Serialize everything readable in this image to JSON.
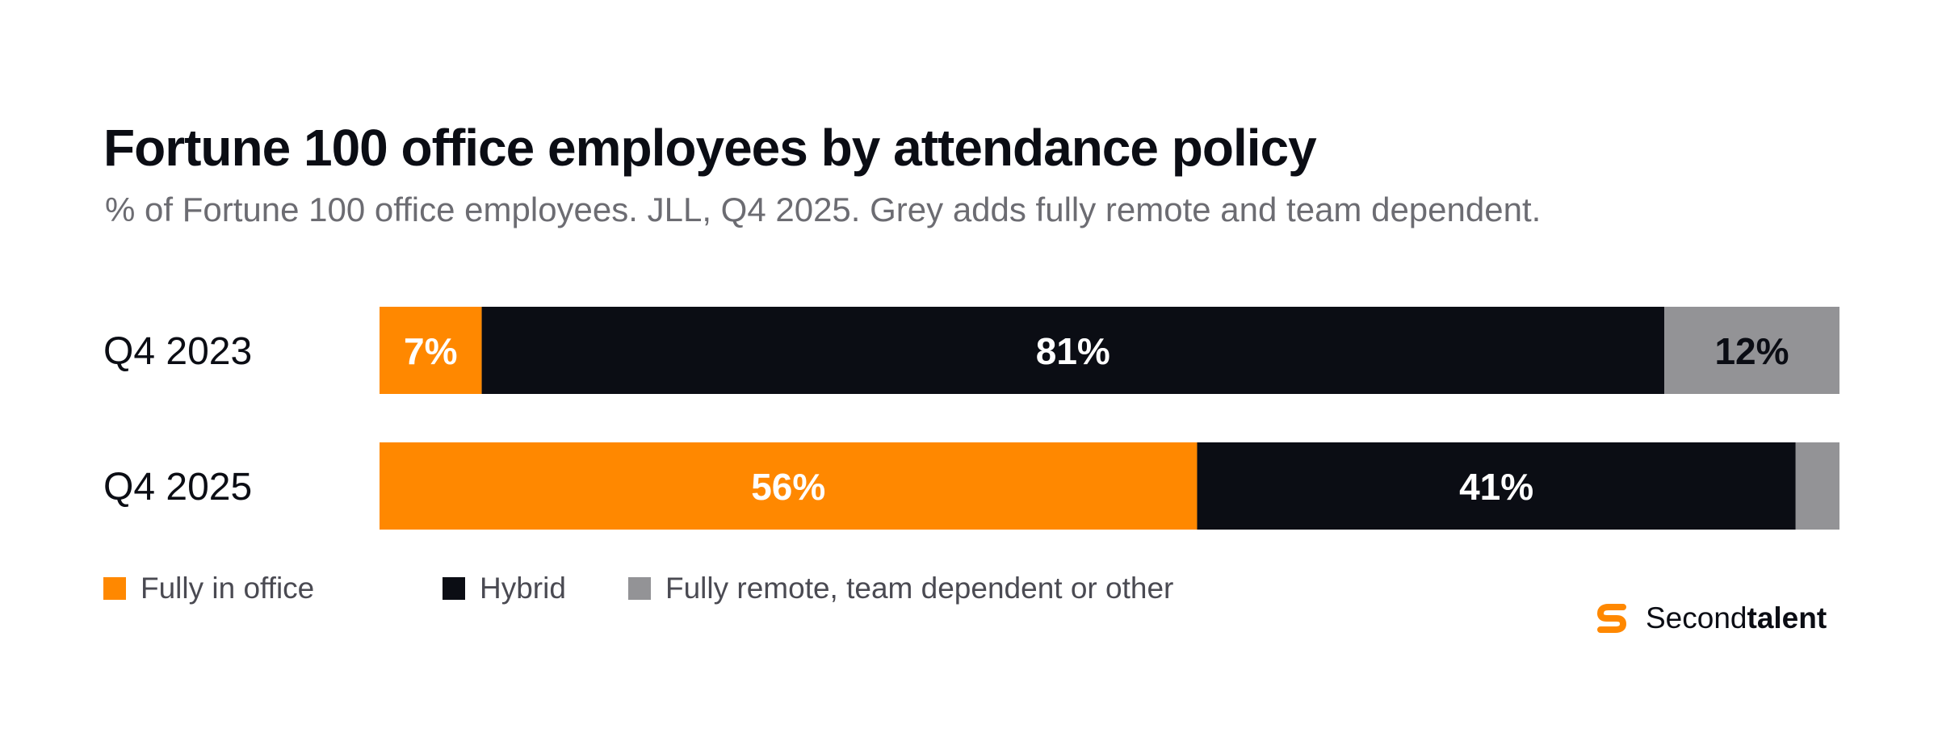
{
  "chart_data": {
    "type": "bar",
    "orientation": "horizontal",
    "stacked": true,
    "title": "Fortune 100 office employees by attendance policy",
    "subtitle": "% of Fortune 100 office employees. JLL, Q4 2025. Grey adds fully remote and team dependent.",
    "categories": [
      "Q4 2023",
      "Q4 2025"
    ],
    "series": [
      {
        "name": "Fully in office",
        "color": "#ff8800",
        "values": [
          7,
          56
        ],
        "labels": [
          "7%",
          "56%"
        ],
        "label_color": "#ffffff"
      },
      {
        "name": "Hybrid",
        "color": "#0b0d14",
        "values": [
          81,
          41
        ],
        "labels": [
          "81%",
          "41%"
        ],
        "label_color": "#ffffff"
      },
      {
        "name": "Fully remote, team dependent or other",
        "color": "#939396",
        "values": [
          12,
          3
        ],
        "labels": [
          "12%",
          ""
        ],
        "label_color": "#0b0d14"
      }
    ],
    "xlim": [
      0,
      100
    ],
    "grid": false,
    "legend_position": "bottom-left"
  },
  "brand": {
    "name_regular": "Second",
    "name_bold": "talent",
    "icon": "secondtalent-logo-icon",
    "color": "#ff8800"
  }
}
